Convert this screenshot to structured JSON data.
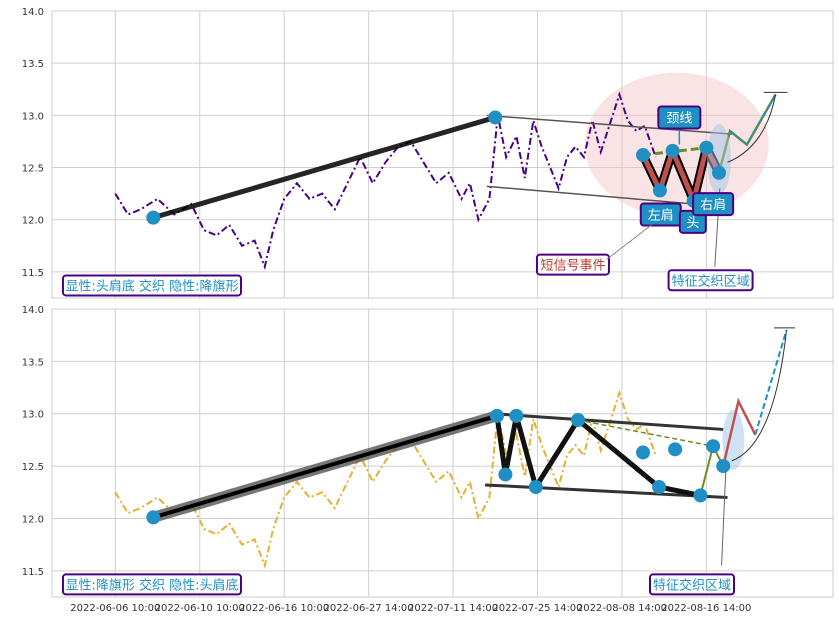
{
  "chart_data": [
    {
      "type": "line",
      "panel": "top",
      "ylim": [
        11.25,
        14.0
      ],
      "yticks": [
        "14.0",
        "13.5",
        "13.0",
        "12.5",
        "12.0",
        "11.5"
      ],
      "series": [
        {
          "color": "#4b0082",
          "style": "dashdot",
          "points": [
            [
              0,
              12.25
            ],
            [
              1.5,
              12.05
            ],
            [
              3,
              12.1
            ],
            [
              5,
              12.2
            ],
            [
              7,
              12.05
            ],
            [
              9,
              12.15
            ],
            [
              10.5,
              11.9
            ],
            [
              12,
              11.85
            ],
            [
              13.5,
              11.95
            ],
            [
              15,
              11.75
            ],
            [
              16.5,
              11.8
            ],
            [
              17.7,
              11.55
            ],
            [
              18.7,
              11.9
            ],
            [
              20,
              12.2
            ],
            [
              21.5,
              12.35
            ],
            [
              23,
              12.2
            ],
            [
              24.5,
              12.25
            ],
            [
              26,
              12.1
            ],
            [
              27.5,
              12.35
            ],
            [
              29,
              12.6
            ],
            [
              30.5,
              12.35
            ],
            [
              32,
              12.55
            ],
            [
              33.5,
              12.7
            ],
            [
              35,
              12.75
            ],
            [
              36.5,
              12.55
            ],
            [
              38,
              12.35
            ],
            [
              39.5,
              12.45
            ],
            [
              41,
              12.2
            ],
            [
              42,
              12.35
            ],
            [
              43,
              12.0
            ],
            [
              44.3,
              12.2
            ],
            [
              45.3,
              13.0
            ],
            [
              46.3,
              12.6
            ],
            [
              47.5,
              12.8
            ],
            [
              48.5,
              12.4
            ],
            [
              49.5,
              12.95
            ],
            [
              50.5,
              12.7
            ],
            [
              51.5,
              12.5
            ],
            [
              52.5,
              12.3
            ],
            [
              53.5,
              12.6
            ],
            [
              54.5,
              12.7
            ],
            [
              55.5,
              12.6
            ],
            [
              56.5,
              12.95
            ],
            [
              57.5,
              12.65
            ],
            [
              58.5,
              12.9
            ],
            [
              59.7,
              13.2
            ],
            [
              60.7,
              12.95
            ],
            [
              61.7,
              12.85
            ],
            [
              62.7,
              12.9
            ],
            [
              64,
              12.6
            ]
          ]
        }
      ],
      "pattern_points": [
        [
          4.5,
          12.02
        ],
        [
          45.0,
          12.98
        ],
        [
          62.5,
          12.62
        ],
        [
          64.5,
          12.28
        ],
        [
          66.0,
          12.66
        ],
        [
          68.5,
          12.18
        ],
        [
          70.0,
          12.69
        ],
        [
          71.5,
          12.45
        ],
        [
          72.8,
          12.85
        ],
        [
          74.8,
          12.72
        ],
        [
          78.2,
          13.2
        ]
      ],
      "trend_lines": [
        [
          [
            44,
            13.0
          ],
          [
            73,
            12.82
          ]
        ],
        [
          [
            44,
            12.32
          ],
          [
            73,
            12.12
          ]
        ]
      ],
      "labels": {
        "neckline": "颈线",
        "left_shoulder": "左肩",
        "head": "头",
        "right_shoulder": "右肩",
        "short_signal": "短信号事件",
        "zone": "特征交织区域",
        "summary": "显性:头肩底 交织 隐性:降旗形"
      }
    },
    {
      "type": "line",
      "panel": "bottom",
      "ylim": [
        11.25,
        14.0
      ],
      "yticks": [
        "14.0",
        "13.5",
        "13.0",
        "12.5",
        "12.0",
        "11.5"
      ],
      "series": [
        {
          "color": "#e3b130",
          "style": "dashdot",
          "points": [
            [
              0,
              12.25
            ],
            [
              1.5,
              12.05
            ],
            [
              3,
              12.1
            ],
            [
              5,
              12.2
            ],
            [
              7,
              12.05
            ],
            [
              9,
              12.15
            ],
            [
              10.5,
              11.9
            ],
            [
              12,
              11.85
            ],
            [
              13.5,
              11.95
            ],
            [
              15,
              11.75
            ],
            [
              16.5,
              11.8
            ],
            [
              17.7,
              11.55
            ],
            [
              18.7,
              11.9
            ],
            [
              20,
              12.2
            ],
            [
              21.5,
              12.35
            ],
            [
              23,
              12.2
            ],
            [
              24.5,
              12.25
            ],
            [
              26,
              12.1
            ],
            [
              27.5,
              12.35
            ],
            [
              29,
              12.6
            ],
            [
              30.5,
              12.35
            ],
            [
              32,
              12.55
            ],
            [
              33.5,
              12.7
            ],
            [
              35,
              12.75
            ],
            [
              36.5,
              12.55
            ],
            [
              38,
              12.35
            ],
            [
              39.5,
              12.45
            ],
            [
              41,
              12.2
            ],
            [
              42,
              12.35
            ],
            [
              43,
              12.0
            ],
            [
              44.3,
              12.2
            ],
            [
              45.3,
              13.0
            ],
            [
              46.3,
              12.6
            ],
            [
              47.5,
              12.8
            ],
            [
              48.5,
              12.4
            ],
            [
              49.5,
              12.95
            ],
            [
              50.5,
              12.7
            ],
            [
              51.5,
              12.5
            ],
            [
              52.5,
              12.3
            ],
            [
              53.5,
              12.6
            ],
            [
              54.5,
              12.7
            ],
            [
              55.5,
              12.6
            ],
            [
              56.5,
              12.95
            ],
            [
              57.5,
              12.65
            ],
            [
              58.5,
              12.9
            ],
            [
              59.7,
              13.2
            ],
            [
              60.7,
              12.95
            ],
            [
              61.7,
              12.85
            ],
            [
              62.7,
              12.9
            ],
            [
              64,
              12.6
            ]
          ]
        }
      ],
      "pattern_points": [
        [
          4.5,
          12.01
        ],
        [
          45.2,
          12.98
        ],
        [
          46.2,
          12.42
        ],
        [
          47.5,
          12.98
        ],
        [
          49.8,
          12.3
        ],
        [
          54.8,
          12.94
        ],
        [
          62.5,
          12.63
        ],
        [
          64.4,
          12.3
        ],
        [
          66.3,
          12.66
        ],
        [
          69.3,
          12.22
        ],
        [
          70.8,
          12.69
        ],
        [
          72.0,
          12.5
        ],
        [
          73.8,
          13.12
        ],
        [
          75.8,
          12.8
        ],
        [
          79.5,
          13.8
        ]
      ],
      "trend_lines": [
        [
          [
            44.8,
            13.0
          ],
          [
            72,
            12.85
          ]
        ],
        [
          [
            43.8,
            12.32
          ],
          [
            72.5,
            12.2
          ]
        ]
      ],
      "labels": {
        "zone": "特征交织区域",
        "summary": "显性:降旗形 交织 隐性:头肩底"
      }
    }
  ],
  "x_axis": {
    "ticks": [
      {
        "x": 0,
        "label": "2022-06-06 10:00"
      },
      {
        "x": 10,
        "label": "2022-06-10 10:00"
      },
      {
        "x": 20,
        "label": "2022-06-16 10:00"
      },
      {
        "x": 30,
        "label": "2022-06-27 14:00"
      },
      {
        "x": 40,
        "label": "2022-07-11 14:00"
      },
      {
        "x": 50,
        "label": "2022-07-25 14:00"
      },
      {
        "x": 60,
        "label": "2022-08-08 14:00"
      },
      {
        "x": 70,
        "label": "2022-08-16 14:00"
      }
    ]
  }
}
